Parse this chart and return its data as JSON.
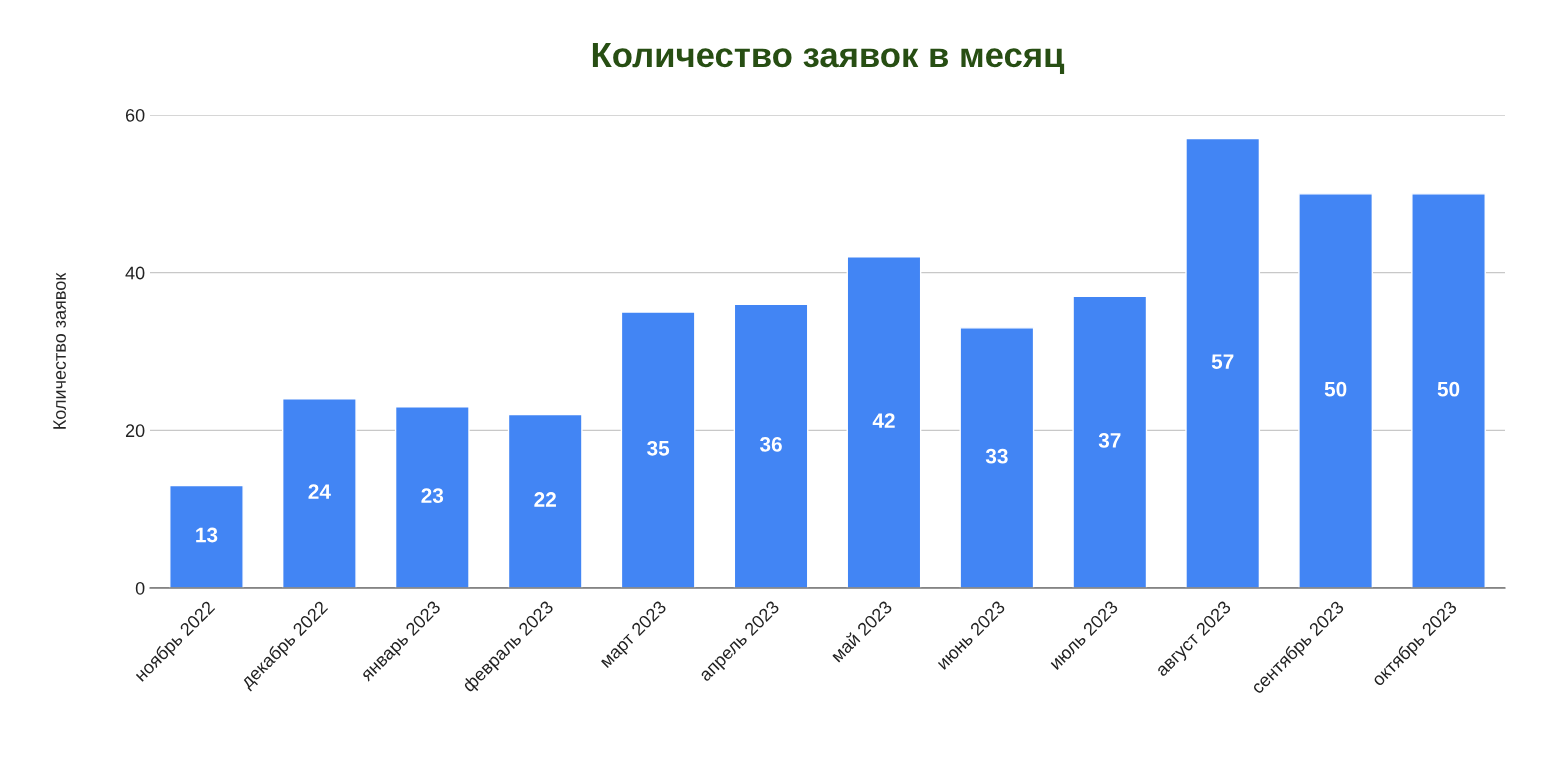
{
  "chart_data": {
    "type": "bar",
    "title": "Количество заявок в месяц",
    "ylabel": "Количество заявок",
    "categories": [
      "ноябрь 2022",
      "декабрь 2022",
      "январь 2023",
      "февраль 2023",
      "март 2023",
      "апрель 2023",
      "май 2023",
      "июнь 2023",
      "июль 2023",
      "август 2023",
      "сентябрь 2023",
      "октябрь 2023"
    ],
    "values": [
      13,
      24,
      23,
      22,
      35,
      36,
      42,
      33,
      37,
      57,
      50,
      50
    ],
    "color": "#4285f4",
    "ylim": [
      0,
      60
    ],
    "yticks": [
      0,
      20,
      40,
      60
    ],
    "grid": "y",
    "data_labels": true
  }
}
